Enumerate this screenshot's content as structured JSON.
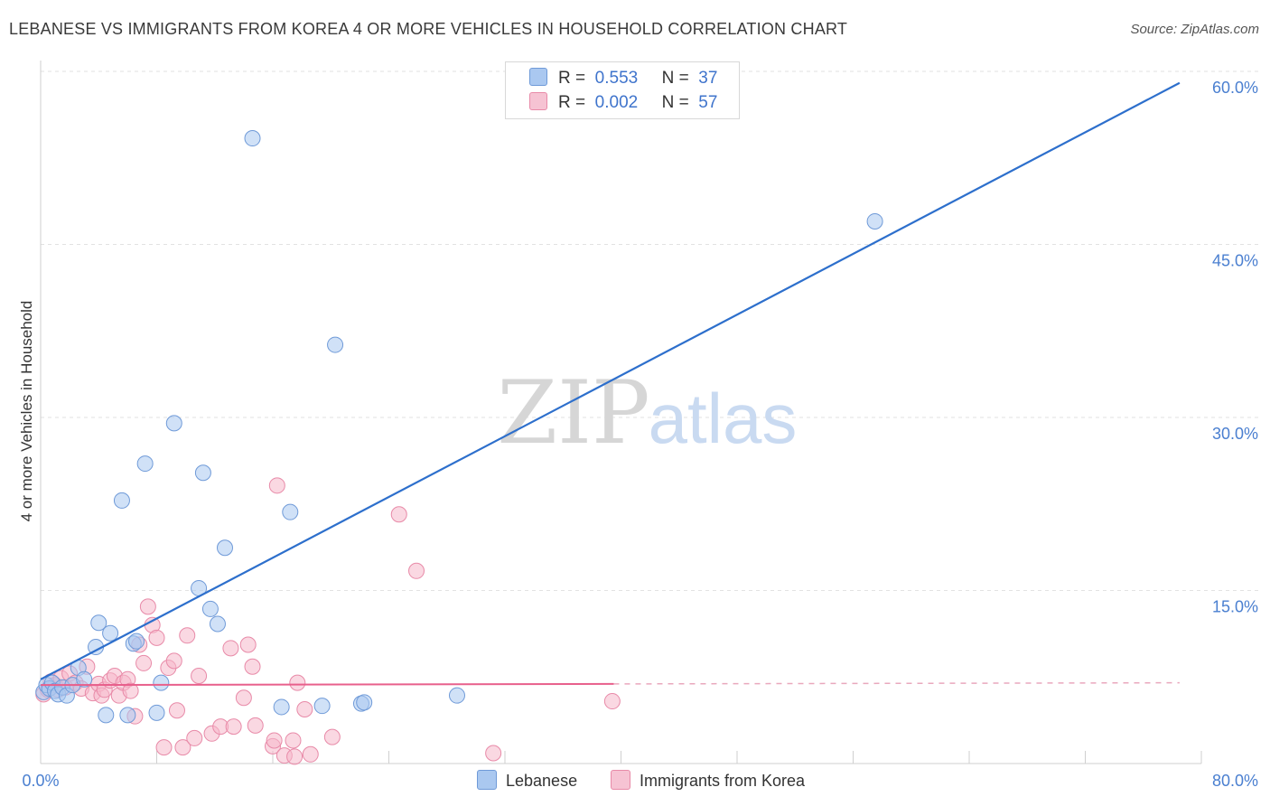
{
  "header": {
    "title": "LEBANESE VS IMMIGRANTS FROM KOREA 4 OR MORE VEHICLES IN HOUSEHOLD CORRELATION CHART",
    "source": "Source: ZipAtlas.com"
  },
  "watermark": {
    "zip": "ZIP",
    "atlas": "atlas"
  },
  "legend": {
    "rows": [
      {
        "r_label": "R =",
        "r_value": "0.553",
        "n_label": "N =",
        "n_value": "37"
      },
      {
        "r_label": "R =",
        "r_value": "0.002",
        "n_label": "N =",
        "n_value": "57"
      }
    ]
  },
  "colors": {
    "lebanese_fill": "#aac8f0",
    "lebanese_stroke": "#6f9ad8",
    "lebanese_line": "#2d6fcc",
    "korea_fill": "#f6b8cb",
    "korea_stroke": "#e88aa8",
    "korea_line": "#e8608c",
    "grid": "#e2e2e2",
    "tick": "#4a7fd0"
  },
  "chart_data": {
    "type": "scatter",
    "title": "LEBANESE VS IMMIGRANTS FROM KOREA 4 OR MORE VEHICLES IN HOUSEHOLD CORRELATION CHART",
    "xlabel": "",
    "ylabel": "4 or more Vehicles in Household",
    "xlim": [
      0,
      80
    ],
    "ylim": [
      0,
      60
    ],
    "x_tick_labels": [
      "0.0%",
      "80.0%"
    ],
    "y_ticks": [
      15,
      30,
      45,
      60
    ],
    "y_tick_labels": [
      "15.0%",
      "30.0%",
      "45.0%",
      "60.0%"
    ],
    "grid": true,
    "series": [
      {
        "name": "Lebanese",
        "R": 0.553,
        "N": 37,
        "points": [
          [
            0.2,
            6.2
          ],
          [
            0.4,
            6.8
          ],
          [
            0.6,
            6.5
          ],
          [
            0.8,
            7.0
          ],
          [
            1.0,
            6.3
          ],
          [
            1.2,
            6.0
          ],
          [
            1.5,
            6.6
          ],
          [
            1.8,
            5.9
          ],
          [
            2.2,
            6.8
          ],
          [
            2.6,
            8.3
          ],
          [
            3.0,
            7.3
          ],
          [
            3.8,
            10.1
          ],
          [
            4.0,
            12.2
          ],
          [
            4.5,
            4.2
          ],
          [
            4.8,
            11.3
          ],
          [
            5.6,
            22.8
          ],
          [
            6.0,
            4.2
          ],
          [
            6.4,
            10.4
          ],
          [
            6.6,
            10.6
          ],
          [
            7.2,
            26.0
          ],
          [
            8.0,
            4.4
          ],
          [
            8.3,
            7.0
          ],
          [
            9.2,
            29.5
          ],
          [
            10.9,
            15.2
          ],
          [
            11.2,
            25.2
          ],
          [
            11.7,
            13.4
          ],
          [
            12.2,
            12.1
          ],
          [
            12.7,
            18.7
          ],
          [
            14.6,
            54.2
          ],
          [
            16.6,
            4.9
          ],
          [
            17.2,
            21.8
          ],
          [
            19.4,
            5.0
          ],
          [
            20.3,
            36.3
          ],
          [
            22.1,
            5.2
          ],
          [
            22.3,
            5.3
          ],
          [
            28.7,
            5.9
          ],
          [
            57.5,
            47.0
          ]
        ],
        "trend": {
          "x": [
            0,
            78.5
          ],
          "y": [
            7.3,
            59.0
          ]
        }
      },
      {
        "name": "Immigrants from Korea",
        "R": 0.002,
        "N": 57,
        "points": [
          [
            0.2,
            6.0
          ],
          [
            0.5,
            6.4
          ],
          [
            0.7,
            7.1
          ],
          [
            1.0,
            6.8
          ],
          [
            1.2,
            6.4
          ],
          [
            1.4,
            7.4
          ],
          [
            1.7,
            6.6
          ],
          [
            2.0,
            7.8
          ],
          [
            2.4,
            7.0
          ],
          [
            2.8,
            6.5
          ],
          [
            3.2,
            8.4
          ],
          [
            3.6,
            6.1
          ],
          [
            4.0,
            6.9
          ],
          [
            4.2,
            5.9
          ],
          [
            4.4,
            6.4
          ],
          [
            4.8,
            7.2
          ],
          [
            5.1,
            7.6
          ],
          [
            5.4,
            5.9
          ],
          [
            5.7,
            7.0
          ],
          [
            6.0,
            7.3
          ],
          [
            6.2,
            6.3
          ],
          [
            6.5,
            4.1
          ],
          [
            6.8,
            10.3
          ],
          [
            7.1,
            8.7
          ],
          [
            7.4,
            13.6
          ],
          [
            7.7,
            12.0
          ],
          [
            8.0,
            10.9
          ],
          [
            8.5,
            1.4
          ],
          [
            8.8,
            8.3
          ],
          [
            9.2,
            8.9
          ],
          [
            9.4,
            4.6
          ],
          [
            9.8,
            1.4
          ],
          [
            10.1,
            11.1
          ],
          [
            10.6,
            2.2
          ],
          [
            10.9,
            7.6
          ],
          [
            11.8,
            2.6
          ],
          [
            12.4,
            3.2
          ],
          [
            13.1,
            10.0
          ],
          [
            13.3,
            3.2
          ],
          [
            14.0,
            5.7
          ],
          [
            14.3,
            10.3
          ],
          [
            14.6,
            8.4
          ],
          [
            14.8,
            3.3
          ],
          [
            16.0,
            1.5
          ],
          [
            16.1,
            2.0
          ],
          [
            16.3,
            24.1
          ],
          [
            16.8,
            0.7
          ],
          [
            17.4,
            2.0
          ],
          [
            17.5,
            0.6
          ],
          [
            17.7,
            7.0
          ],
          [
            18.2,
            4.7
          ],
          [
            18.6,
            0.8
          ],
          [
            20.1,
            2.3
          ],
          [
            24.7,
            21.6
          ],
          [
            25.9,
            16.7
          ],
          [
            31.2,
            0.9
          ],
          [
            39.4,
            5.4
          ]
        ],
        "trend": {
          "x": [
            0,
            39.5
          ],
          "y": [
            6.8,
            6.9
          ]
        },
        "trend_dashed": {
          "x": [
            39.5,
            78.5
          ],
          "y": [
            6.9,
            7.0
          ]
        }
      }
    ]
  },
  "axis": {
    "ylabel": "4 or more Vehicles in Household",
    "x_min_label": "0.0%",
    "x_max_label": "80.0%"
  },
  "bottom_legend": {
    "lebanese": "Lebanese",
    "korea": "Immigrants from Korea"
  }
}
